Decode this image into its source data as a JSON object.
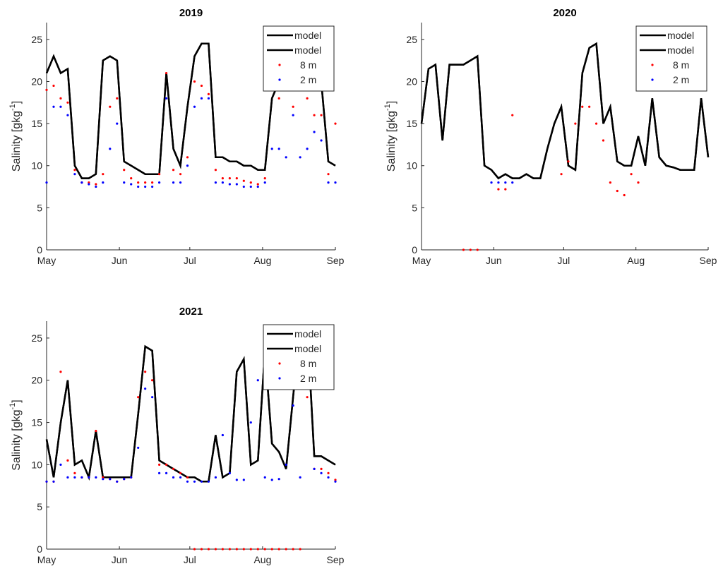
{
  "chart_data": [
    {
      "type": "line",
      "title": "2019",
      "ylabel": {
        "text": "Salinity [gkg",
        "superscript": "-1",
        "suffix": "]"
      },
      "x": [
        0,
        3,
        6,
        9,
        12,
        15,
        18,
        21,
        24,
        27,
        30,
        33,
        36,
        39,
        42,
        45,
        48,
        51,
        54,
        57,
        60,
        63,
        66,
        69,
        72,
        75,
        78,
        81,
        84,
        87,
        90,
        93,
        96,
        99,
        102,
        105,
        108,
        111,
        114,
        117,
        120,
        123
      ],
      "xlim": [
        0,
        123
      ],
      "xticks": [
        {
          "value": 0,
          "label": "May"
        },
        {
          "value": 31,
          "label": "Jun"
        },
        {
          "value": 61,
          "label": "Jul"
        },
        {
          "value": 92,
          "label": "Aug"
        },
        {
          "value": 123,
          "label": "Sep"
        }
      ],
      "ylim": [
        0,
        27
      ],
      "yticks": [
        0,
        5,
        10,
        15,
        20,
        25
      ],
      "legend": "top-right",
      "series": [
        {
          "name": "model",
          "color": "#000000",
          "style": "line",
          "values": [
            21,
            23,
            21,
            21.5,
            10,
            8.5,
            8.5,
            9,
            22.5,
            23,
            22.5,
            10.5,
            10,
            9.5,
            9,
            9,
            9,
            21,
            12,
            10,
            17,
            23,
            24.5,
            24.5,
            11,
            11,
            10.5,
            10.5,
            10,
            10,
            9.5,
            9.5,
            18,
            20,
            20,
            20,
            20,
            20,
            20,
            20,
            10.5,
            10
          ]
        },
        {
          "name": "model",
          "color": "#000000",
          "style": "line",
          "values": [
            21,
            23,
            21,
            21.5,
            10,
            8.5,
            8.5,
            9,
            22.5,
            23,
            22.5,
            10.5,
            10,
            9.5,
            9,
            9,
            9,
            21,
            12,
            10,
            17,
            23,
            24.5,
            24.5,
            11,
            11,
            10.5,
            10.5,
            10,
            10,
            9.5,
            9.5,
            18,
            20,
            20,
            20,
            20,
            20,
            20,
            20,
            10.5,
            10
          ]
        },
        {
          "name": "8 m",
          "color": "#ff0000",
          "style": "points",
          "values": [
            19,
            19.5,
            18,
            17.5,
            9.5,
            8,
            8,
            7.8,
            9,
            17,
            18,
            9.5,
            8.5,
            8,
            8,
            8,
            9,
            21,
            9.5,
            9,
            11,
            20,
            19.5,
            18.5,
            9.5,
            8.5,
            8.5,
            8.5,
            8.2,
            8,
            7.8,
            8.5,
            19,
            18,
            19,
            17,
            19,
            18,
            16,
            16,
            9,
            15
          ]
        },
        {
          "name": "2 m",
          "color": "#0000ff",
          "style": "points",
          "values": [
            8,
            17,
            17,
            16,
            9,
            8,
            7.8,
            7.5,
            8,
            12,
            15,
            8,
            7.8,
            7.5,
            7.5,
            7.5,
            8,
            18,
            8,
            8,
            10,
            17,
            18,
            18,
            8,
            8,
            7.8,
            7.8,
            7.5,
            7.5,
            7.5,
            8,
            12,
            12,
            11,
            16,
            11,
            12,
            14,
            13,
            8,
            8
          ]
        }
      ]
    },
    {
      "type": "line",
      "title": "2020",
      "ylabel": {
        "text": "Salinity [gkg",
        "superscript": "-1",
        "suffix": "]"
      },
      "x": [
        0,
        3,
        6,
        9,
        12,
        15,
        18,
        21,
        24,
        27,
        30,
        33,
        36,
        39,
        42,
        45,
        48,
        51,
        54,
        57,
        60,
        63,
        66,
        69,
        72,
        75,
        78,
        81,
        84,
        87,
        90,
        93,
        96,
        99,
        102,
        105,
        108,
        111,
        114,
        117,
        120,
        123
      ],
      "xlim": [
        0,
        123
      ],
      "xticks": [
        {
          "value": 0,
          "label": "May"
        },
        {
          "value": 31,
          "label": "Jun"
        },
        {
          "value": 61,
          "label": "Jul"
        },
        {
          "value": 92,
          "label": "Aug"
        },
        {
          "value": 123,
          "label": "Sep"
        }
      ],
      "ylim": [
        0,
        27
      ],
      "yticks": [
        0,
        5,
        10,
        15,
        20,
        25
      ],
      "legend": "top-right",
      "series": [
        {
          "name": "model",
          "color": "#000000",
          "style": "line",
          "values": [
            15,
            21.5,
            22,
            13,
            22,
            22,
            22,
            22.5,
            23,
            10,
            9.5,
            8.5,
            9,
            8.5,
            8.5,
            9,
            8.5,
            8.5,
            12,
            15,
            17,
            10,
            9.5,
            21,
            24,
            24.5,
            15,
            17,
            10.5,
            10,
            10,
            13.5,
            10,
            18,
            11,
            10,
            9.8,
            9.5,
            9.5,
            9.5,
            18,
            11
          ]
        },
        {
          "name": "model",
          "color": "#000000",
          "style": "line",
          "values": [
            15,
            21.5,
            22,
            13,
            22,
            22,
            22,
            22.5,
            23,
            10,
            9.5,
            8.5,
            9,
            8.5,
            8.5,
            9,
            8.5,
            8.5,
            12,
            15,
            17,
            10,
            9.5,
            21,
            24,
            24.5,
            15,
            17,
            10.5,
            10,
            10,
            13.5,
            10,
            18,
            11,
            10,
            9.8,
            9.5,
            9.5,
            9.5,
            18,
            11
          ]
        },
        {
          "name": "8 m",
          "color": "#ff0000",
          "style": "points",
          "values": [
            null,
            null,
            null,
            null,
            null,
            null,
            0,
            0,
            0,
            null,
            null,
            7.2,
            7.2,
            16,
            null,
            null,
            null,
            null,
            null,
            null,
            9,
            10.5,
            15,
            17,
            17,
            15,
            13,
            8,
            7,
            6.5,
            9,
            8,
            null,
            null,
            null,
            null,
            null,
            null,
            null,
            null,
            null,
            null
          ]
        },
        {
          "name": "2 m",
          "color": "#0000ff",
          "style": "points",
          "values": [
            null,
            null,
            null,
            null,
            null,
            null,
            null,
            null,
            null,
            null,
            8,
            8,
            8,
            8,
            null,
            null,
            null,
            null,
            null,
            null,
            null,
            null,
            null,
            null,
            null,
            null,
            null,
            null,
            null,
            null,
            null,
            null,
            null,
            null,
            null,
            null,
            null,
            null,
            null,
            null,
            null,
            null
          ]
        }
      ]
    },
    {
      "type": "line",
      "title": "2021",
      "ylabel": {
        "text": "Salinity [gkg",
        "superscript": "-1",
        "suffix": "]"
      },
      "x": [
        0,
        3,
        6,
        9,
        12,
        15,
        18,
        21,
        24,
        27,
        30,
        33,
        36,
        39,
        42,
        45,
        48,
        51,
        54,
        57,
        60,
        63,
        66,
        69,
        72,
        75,
        78,
        81,
        84,
        87,
        90,
        93,
        96,
        99,
        102,
        105,
        108,
        111,
        114,
        117,
        120,
        123
      ],
      "xlim": [
        0,
        123
      ],
      "xticks": [
        {
          "value": 0,
          "label": "May"
        },
        {
          "value": 31,
          "label": "Jun"
        },
        {
          "value": 61,
          "label": "Jul"
        },
        {
          "value": 92,
          "label": "Aug"
        },
        {
          "value": 123,
          "label": "Sep"
        }
      ],
      "ylim": [
        0,
        27
      ],
      "yticks": [
        0,
        5,
        10,
        15,
        20,
        25
      ],
      "legend": "top-right",
      "series": [
        {
          "name": "model",
          "color": "#000000",
          "style": "line",
          "values": [
            13,
            8.5,
            15,
            20,
            10,
            10.5,
            8.5,
            14,
            8.5,
            8.5,
            8.5,
            8.5,
            8.5,
            16,
            24,
            23.5,
            10.5,
            10,
            9.5,
            9,
            8.5,
            8.5,
            8,
            8,
            13.5,
            8.5,
            9,
            21,
            22.5,
            10,
            10.5,
            23.5,
            12.5,
            11.5,
            9.5,
            18,
            26.5,
            26.5,
            11,
            11,
            10.5,
            10
          ]
        },
        {
          "name": "model",
          "color": "#000000",
          "style": "line",
          "values": [
            13,
            8.5,
            15,
            20,
            10,
            10.5,
            8.5,
            14,
            8.5,
            8.5,
            8.5,
            8.5,
            8.5,
            16,
            24,
            23.5,
            10.5,
            10,
            9.5,
            9,
            8.5,
            8.5,
            8,
            8,
            13.5,
            8.5,
            9,
            21,
            22.5,
            10,
            10.5,
            23.5,
            12.5,
            11.5,
            9.5,
            18,
            26.5,
            26.5,
            11,
            11,
            10.5,
            10
          ]
        },
        {
          "name": "8 m",
          "color": "#ff0000",
          "style": "points",
          "values": [
            8,
            8,
            21,
            10.5,
            9,
            8.5,
            8.5,
            14,
            8.5,
            8.3,
            8,
            8.3,
            8.5,
            18,
            21,
            20,
            10,
            10,
            9.5,
            9,
            8.5,
            0,
            0,
            0,
            0,
            0,
            0,
            0,
            0,
            0,
            0,
            0,
            0,
            0,
            0,
            0,
            0,
            18,
            9.5,
            9.5,
            9,
            8.2
          ]
        },
        {
          "name": "2 m",
          "color": "#0000ff",
          "style": "points",
          "values": [
            8,
            8,
            10,
            8.5,
            8.5,
            8.5,
            8.5,
            8.5,
            8.3,
            8.3,
            8,
            8.3,
            8.5,
            12,
            19,
            18,
            9,
            9,
            8.5,
            8.5,
            8,
            8,
            8,
            8,
            8.5,
            13.5,
            9,
            8.2,
            8.2,
            15,
            20,
            8.5,
            8.2,
            8.3,
            10,
            17,
            8.5,
            22,
            9.5,
            9,
            8.5,
            8
          ]
        }
      ]
    }
  ]
}
